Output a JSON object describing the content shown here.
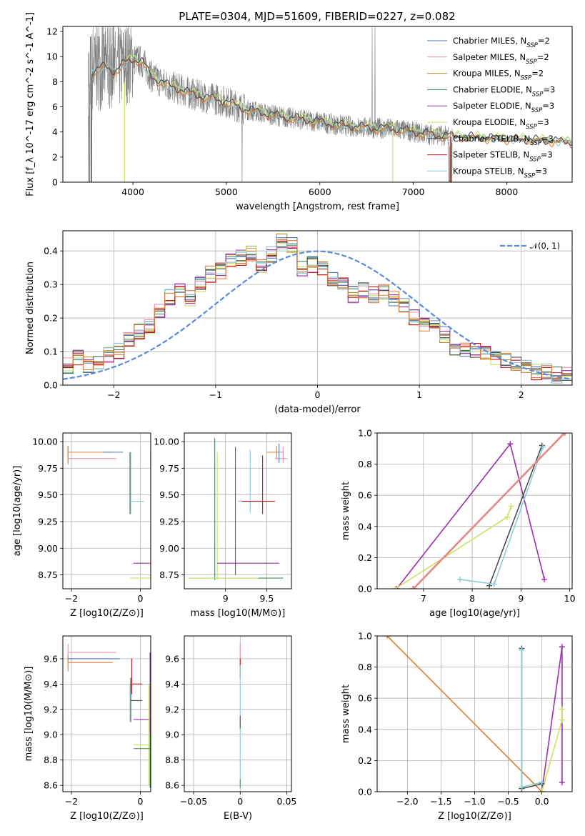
{
  "figure_title": "PLATE=0304, MJD=51609, FIBERID=0227, z=0.082",
  "colors": {
    "Chabrier MILES": "#4a72c4",
    "Salpeter MILES": "#e88fb4",
    "Kroupa MILES": "#b58b1e",
    "Chabrier ELODIE": "#3e8a5e",
    "Salpeter ELODIE": "#9b2fae",
    "Kroupa ELODIE": "#c7e35f",
    "Chabrier STELIB": "#4d4d4d",
    "Salpeter STELIB": "#c3161c",
    "Kroupa STELIB": "#8ecbd3",
    "orange": "#e07b39",
    "data": "#808080",
    "normal": "#5b8bd6"
  },
  "chart_data": [
    {
      "id": "spectrum",
      "type": "line",
      "xlabel": "wavelength [Angstrom, rest frame]",
      "ylabel": "Flux [f_λ 10^-17 erg cm^-2 s^-1 A^-1]",
      "xlim": [
        3250,
        8700
      ],
      "ylim": [
        0,
        12.4
      ],
      "xticks": [
        4000,
        5000,
        6000,
        7000,
        8000
      ],
      "yticks": [
        0,
        2,
        4,
        6,
        8,
        10,
        12
      ],
      "grid": false,
      "legend_position": "upper right",
      "legend": [
        {
          "name": "Chabrier MILES",
          "nssp": "2"
        },
        {
          "name": "Salpeter MILES",
          "nssp": "2"
        },
        {
          "name": "Kroupa MILES",
          "nssp": "2"
        },
        {
          "name": "Chabrier ELODIE",
          "nssp": "3"
        },
        {
          "name": "Salpeter ELODIE",
          "nssp": "3"
        },
        {
          "name": "Kroupa ELODIE",
          "nssp": "3"
        },
        {
          "name": "Chabrier STELIB",
          "nssp": "3"
        },
        {
          "name": "Salpeter STELIB",
          "nssp": "3"
        },
        {
          "name": "Kroupa STELIB",
          "nssp": "3"
        }
      ],
      "continuum": {
        "x": [
          3500,
          3600,
          3700,
          3800,
          3900,
          4000,
          4100,
          4200,
          4300,
          4400,
          4500,
          4600,
          4700,
          4800,
          4900,
          5000,
          5100,
          5200,
          5400,
          5600,
          5800,
          6000,
          6200,
          6400,
          6600,
          6800,
          7000,
          7200,
          7400,
          7600,
          7800,
          8000,
          8200,
          8400,
          8700
        ],
        "y": [
          8.6,
          8.9,
          9.2,
          8.8,
          9.4,
          9.8,
          9.6,
          8.4,
          8.0,
          7.6,
          7.4,
          7.1,
          6.9,
          6.7,
          6.6,
          6.4,
          6.1,
          5.8,
          5.5,
          5.2,
          5.0,
          4.8,
          4.55,
          4.4,
          4.3,
          4.25,
          4.0,
          3.8,
          3.65,
          3.6,
          3.5,
          3.45,
          3.4,
          3.3,
          3.2
        ]
      }
    },
    {
      "id": "residuals",
      "type": "histogram",
      "xlabel": "(data-model)/error",
      "ylabel": "Normed distribution",
      "xlim": [
        -2.5,
        2.5
      ],
      "ylim": [
        0,
        0.46
      ],
      "xticks": [
        -2,
        -1,
        0,
        1,
        2
      ],
      "yticks": [
        0.0,
        0.1,
        0.2,
        0.3,
        0.4
      ],
      "grid": true,
      "legend": [
        {
          "name": "𝒩(0, 1)"
        }
      ],
      "bin_centers": [
        -2.45,
        -2.35,
        -2.25,
        -2.15,
        -2.05,
        -1.95,
        -1.85,
        -1.75,
        -1.65,
        -1.55,
        -1.45,
        -1.35,
        -1.25,
        -1.15,
        -1.05,
        -0.95,
        -0.85,
        -0.75,
        -0.65,
        -0.55,
        -0.45,
        -0.35,
        -0.25,
        -0.15,
        -0.05,
        0.05,
        0.15,
        0.25,
        0.35,
        0.45,
        0.55,
        0.65,
        0.75,
        0.85,
        0.95,
        1.05,
        1.15,
        1.25,
        1.35,
        1.45,
        1.55,
        1.65,
        1.75,
        1.85,
        1.95,
        2.05,
        2.15,
        2.25,
        2.35,
        2.45
      ],
      "density": [
        0.06,
        0.08,
        0.06,
        0.07,
        0.09,
        0.1,
        0.14,
        0.16,
        0.17,
        0.22,
        0.26,
        0.28,
        0.26,
        0.3,
        0.33,
        0.34,
        0.37,
        0.38,
        0.39,
        0.36,
        0.39,
        0.43,
        0.42,
        0.35,
        0.36,
        0.35,
        0.32,
        0.3,
        0.27,
        0.28,
        0.27,
        0.28,
        0.26,
        0.24,
        0.2,
        0.18,
        0.18,
        0.15,
        0.11,
        0.11,
        0.1,
        0.1,
        0.08,
        0.07,
        0.06,
        0.05,
        0.04,
        0.04,
        0.03,
        0.03
      ]
    },
    {
      "id": "z_age",
      "type": "scatter",
      "xlabel": "Z [log10(Z/Z⊙)]",
      "ylabel": "age  [log10(age/yr)]",
      "xlim": [
        -2.25,
        0.3
      ],
      "ylim": [
        8.62,
        10.08
      ],
      "xticks": [
        -2,
        0
      ],
      "yticks": [
        8.75,
        9.0,
        9.25,
        9.5,
        9.75,
        10.0
      ],
      "grid": true
    },
    {
      "id": "mass_age",
      "type": "scatter",
      "xlabel": "mass [log10(M/M⊙)]",
      "ylabel": "",
      "xlim": [
        8.5,
        9.8
      ],
      "ylim": [
        8.62,
        10.08
      ],
      "xticks": [
        9.0,
        9.5
      ],
      "yticks": [
        8.75,
        9.0,
        9.25,
        9.5,
        9.75,
        10.0
      ],
      "grid": true
    },
    {
      "id": "age_weight",
      "type": "line",
      "xlabel": "age  [log10(age/yr)]",
      "ylabel": "mass weight",
      "xlim": [
        6.05,
        10.05
      ],
      "ylim": [
        0,
        1
      ],
      "xticks": [
        7,
        8,
        9,
        10
      ],
      "yticks": [
        0.0,
        0.2,
        0.4,
        0.6,
        0.8,
        1.0
      ],
      "grid": true,
      "series": [
        {
          "color": "Salpeter ELODIE",
          "x": [
            6.45,
            8.78,
            9.48
          ],
          "y": [
            0.0,
            0.93,
            0.06
          ]
        },
        {
          "color": "Kroupa ELODIE",
          "x": [
            6.42,
            8.72,
            8.8
          ],
          "y": [
            0.0,
            0.46,
            0.53
          ]
        },
        {
          "color": "Chabrier STELIB",
          "x": [
            8.35,
            9.43
          ],
          "y": [
            0.02,
            0.92
          ]
        },
        {
          "color": "Kroupa STELIB",
          "x": [
            7.75,
            8.45,
            9.45
          ],
          "y": [
            0.06,
            0.03,
            0.91
          ]
        },
        {
          "color": "orange",
          "x": [
            6.8,
            9.9
          ],
          "y": [
            0.0,
            1.0
          ]
        },
        {
          "color": "Salpeter MILES",
          "x": [
            6.78,
            9.88
          ],
          "y": [
            0.0,
            1.0
          ]
        }
      ]
    },
    {
      "id": "z_mass",
      "type": "scatter",
      "xlabel": "Z [log10(Z/Z⊙)]",
      "ylabel": "mass [log10(M/M⊙)]",
      "xlim": [
        -2.25,
        0.3
      ],
      "ylim": [
        8.55,
        9.78
      ],
      "xticks": [
        -2,
        0
      ],
      "yticks": [
        8.6,
        8.8,
        9.0,
        9.2,
        9.4,
        9.6
      ],
      "grid": true
    },
    {
      "id": "ebv_mass",
      "type": "scatter",
      "xlabel": "E(B-V)",
      "ylabel": "",
      "xlim": [
        -0.06,
        0.055
      ],
      "ylim": [
        8.55,
        9.78
      ],
      "xticks": [
        -0.05,
        0.0,
        0.05
      ],
      "yticks": [
        8.6,
        8.8,
        9.0,
        9.2,
        9.4,
        9.6
      ],
      "grid": true
    },
    {
      "id": "z_weight",
      "type": "line",
      "xlabel": "Z [log10(Z/Z⊙)]",
      "ylabel": "mass weight",
      "xlim": [
        -2.45,
        0.45
      ],
      "ylim": [
        0,
        1
      ],
      "xticks": [
        -2.0,
        -1.5,
        -1.0,
        -0.5,
        0.0
      ],
      "yticks": [
        0.0,
        0.2,
        0.4,
        0.6,
        0.8,
        1.0
      ],
      "grid": true,
      "series": [
        {
          "color": "orange",
          "x": [
            -2.3,
            0.0
          ],
          "y": [
            1.0,
            0.0
          ]
        },
        {
          "color": "Salpeter ELODIE",
          "x": [
            0.0,
            0.3,
            0.3
          ],
          "y": [
            0.0,
            0.93,
            0.06
          ]
        },
        {
          "color": "Kroupa ELODIE",
          "x": [
            0.0,
            0.3,
            0.3
          ],
          "y": [
            0.0,
            0.46,
            0.53
          ]
        },
        {
          "color": "Chabrier STELIB",
          "x": [
            -0.3,
            -0.3,
            0.0
          ],
          "y": [
            0.92,
            0.02,
            0.05
          ]
        },
        {
          "color": "Kroupa STELIB",
          "x": [
            -0.3,
            -0.3,
            0.0
          ],
          "y": [
            0.91,
            0.03,
            0.06
          ]
        }
      ]
    }
  ]
}
